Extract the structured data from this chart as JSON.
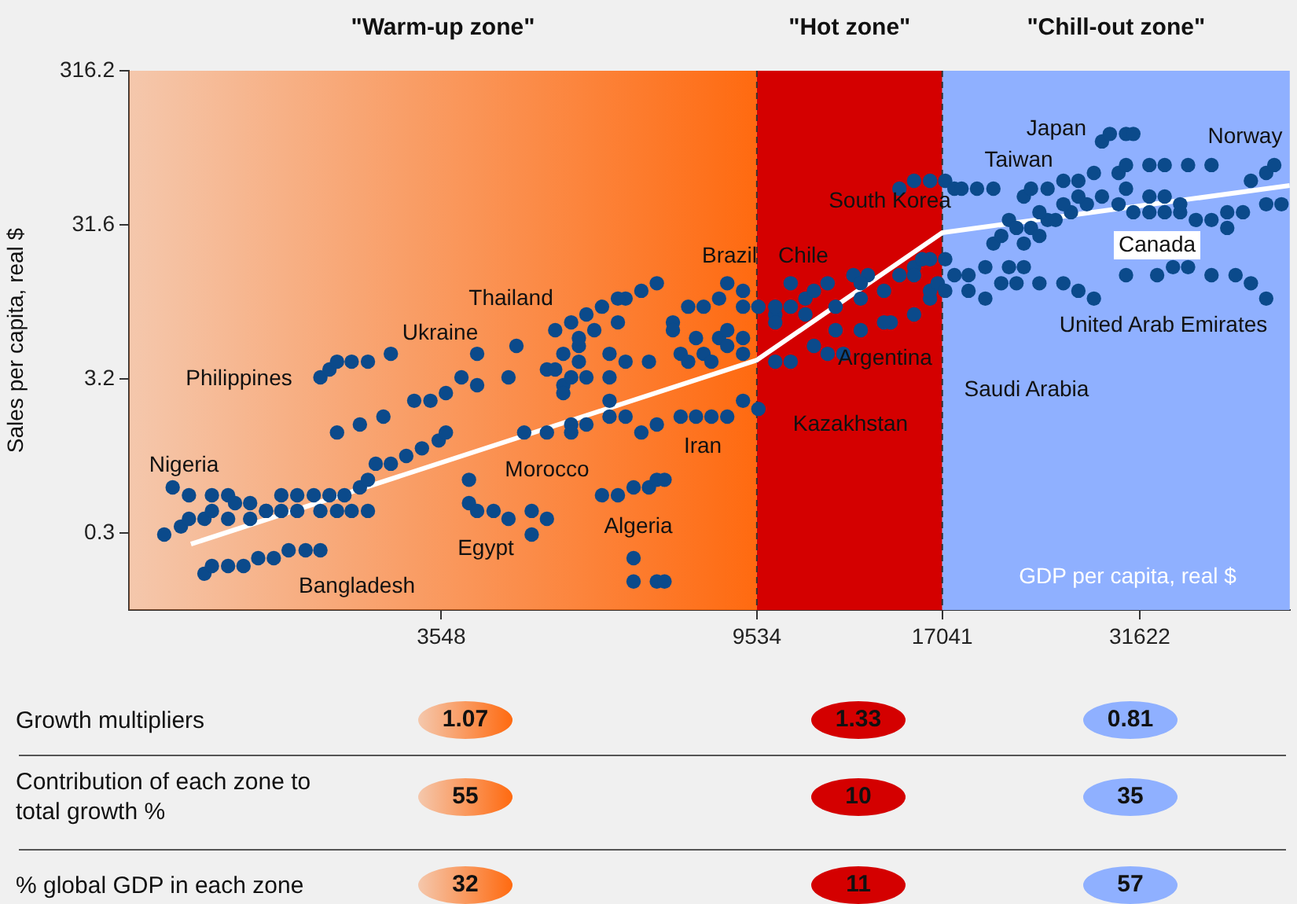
{
  "chart_data": [
    {
      "type": "scatter",
      "ylabel": "Sales per capita, real $",
      "xlabel": "GDP per capita, real $",
      "log": "xy",
      "legend": false,
      "xlim": [
        1334,
        50600
      ],
      "ylim": [
        0.1,
        316.2
      ],
      "xticks": [
        3548,
        9534,
        17041,
        31622
      ],
      "yticks": [
        {
          "value": 0.3162,
          "label": "0.3"
        },
        {
          "value": 3.162,
          "label": "3.2"
        },
        {
          "value": 31.62,
          "label": "31.6"
        },
        {
          "value": 316.2,
          "label": "316.2"
        }
      ],
      "bands": [
        {
          "axis": "x",
          "from": 1334,
          "to": 9534,
          "label": "\"Warm-up zone\"",
          "color": "#ff6a10"
        },
        {
          "axis": "x",
          "from": 9534,
          "to": 17041,
          "label": "\"Hot zone\"",
          "color": "#d40000"
        },
        {
          "axis": "x",
          "from": 17041,
          "to": 50600,
          "label": "\"Chill-out zone\"",
          "color": "#8fb0ff"
        }
      ],
      "ref_lines": [
        {
          "axis": "x",
          "value": 9534,
          "color": "#333333",
          "line_style": "dashed"
        },
        {
          "axis": "x",
          "value": 17041,
          "color": "#333333",
          "line_style": "dashed"
        }
      ],
      "series": [
        {
          "type": "scatter",
          "color": "#0b4a8b",
          "x": [
            1490,
            1570,
            1610,
            1690,
            1530,
            1610,
            1730,
            1820,
            1860,
            1950,
            2050,
            2150,
            2260,
            2380,
            2500,
            2620,
            2750,
            2820,
            2890,
            3030,
            3180,
            3340,
            3520,
            3600,
            1730,
            1820,
            1950,
            2050,
            2150,
            2260,
            2430,
            2560,
            2680,
            2820,
            1690,
            1730,
            1820,
            1910,
            2000,
            2100,
            2200,
            2320,
            2430,
            2430,
            2500,
            2560,
            2680,
            2820,
            3030,
            2560,
            2750,
            2960,
            3260,
            3430,
            3600,
            3780,
            3970,
            3970,
            4380,
            4490,
            3870,
            3970,
            4180,
            4380,
            4710,
            4940,
            4710,
            3870,
            5070,
            5330,
            5590,
            5200,
            5460,
            4940,
            5200,
            5200,
            5330,
            5590,
            5460,
            4600,
            4940,
            5330,
            6970,
            6640,
            6320,
            6170,
            5870,
            5730,
            5460,
            6170,
            7330,
            7690,
            8070,
            8470,
            8690,
            9130,
            9130,
            9580,
            7330,
            7880,
            8470,
            8690,
            9130,
            5070,
            6010,
            6320,
            6800,
            7510,
            7690,
            8070,
            8270,
            8690,
            9130,
            6010,
            6010,
            5330,
            5590,
            6010,
            6320,
            6640,
            6970,
            7510,
            7880,
            8270,
            8690,
            9130,
            9580,
            5870,
            6170,
            6480,
            6800,
            6970,
            7140,
            6480,
            6480,
            6970,
            7140,
            10100,
            10600,
            11100,
            11900,
            12900,
            13500,
            14200,
            14900,
            15600,
            16400,
            17200,
            16400,
            15600,
            14500,
            13200,
            12200,
            11400,
            11900,
            12500,
            10600,
            10100,
            10100,
            11100,
            12200,
            13200,
            10600,
            14900,
            15600,
            16400,
            16000,
            15600,
            13200,
            11400,
            10100,
            14200,
            16400,
            16800,
            17700,
            17200,
            17700,
            18100,
            19000,
            20000,
            21000,
            22000,
            22500,
            23700,
            24900,
            26100,
            27400,
            29600,
            30300,
            32600,
            34200,
            36800,
            39600,
            28100,
            28800,
            30300,
            31000,
            44800,
            47000,
            48200,
            49300,
            47000,
            43700,
            41600,
            20000,
            20500,
            21500,
            22500,
            23700,
            24300,
            25500,
            26800,
            28100,
            29600,
            31000,
            32600,
            34200,
            35900,
            37700,
            39600,
            41600,
            30300,
            32600,
            34200,
            35900,
            23100,
            24900,
            26100,
            23100,
            22000,
            17200,
            18500,
            19500,
            21000,
            22000,
            23100,
            24900,
            26100,
            27400,
            18500,
            19500,
            20500,
            21500,
            30300,
            33400,
            35100,
            36800,
            39600,
            42700,
            44800,
            47000
          ],
          "values": [
            0.309,
            0.348,
            0.391,
            0.391,
            0.625,
            0.556,
            0.556,
            0.556,
            0.494,
            0.494,
            0.44,
            0.556,
            0.556,
            0.556,
            0.556,
            0.556,
            0.625,
            0.7,
            0.89,
            0.89,
            1.0,
            1.12,
            1.26,
            1.42,
            0.44,
            0.391,
            0.391,
            0.44,
            0.44,
            0.44,
            0.44,
            0.44,
            0.44,
            0.44,
            0.172,
            0.193,
            0.193,
            0.193,
            0.217,
            0.217,
            0.244,
            0.244,
            0.244,
            3.24,
            3.64,
            4.09,
            4.09,
            4.09,
            4.6,
            1.42,
            1.6,
            1.8,
            2.28,
            2.28,
            2.56,
            3.24,
            2.88,
            4.6,
            3.24,
            5.18,
            0.494,
            0.44,
            0.44,
            0.391,
            0.44,
            0.391,
            0.309,
            0.7,
            6.55,
            7.36,
            8.28,
            4.6,
            5.18,
            3.64,
            2.88,
            2.56,
            3.24,
            3.24,
            4.09,
            1.42,
            1.42,
            1.6,
            13.2,
            11.8,
            10.5,
            10.5,
            9.3,
            6.55,
            5.82,
            7.36,
            7.36,
            9.3,
            9.3,
            10.5,
            13.2,
            11.8,
            9.3,
            9.3,
            6.55,
            5.82,
            5.82,
            6.55,
            5.82,
            3.64,
            3.24,
            4.09,
            4.09,
            4.6,
            4.09,
            4.6,
            4.09,
            5.18,
            4.6,
            4.6,
            2.28,
            1.42,
            1.6,
            1.8,
            1.8,
            1.42,
            1.6,
            1.8,
            1.8,
            1.8,
            1.8,
            2.28,
            2.02,
            0.556,
            0.556,
            0.625,
            0.625,
            0.7,
            0.7,
            0.217,
            0.153,
            0.153,
            0.153,
            8.28,
            9.3,
            10.5,
            13.2,
            14.9,
            14.9,
            11.8,
            14.9,
            16.8,
            18.9,
            18.9,
            10.5,
            8.28,
            7.36,
            6.55,
            6.55,
            5.18,
            4.6,
            4.6,
            4.09,
            4.09,
            7.36,
            8.28,
            9.3,
            10.5,
            13.2,
            54.3,
            61.1,
            61.1,
            18.9,
            14.9,
            13.2,
            11.8,
            9.3,
            7.36,
            11.8,
            13.2,
            14.9,
            61.1,
            54.3,
            54.3,
            54.3,
            54.3,
            34.0,
            48.3,
            54.3,
            54.3,
            61.1,
            61.1,
            68.7,
            68.7,
            77.3,
            77.3,
            77.3,
            77.3,
            77.3,
            110,
            123,
            123,
            123,
            61.1,
            68.7,
            77.3,
            43.0,
            43.0,
            38.2,
            38.2,
            23.9,
            26.8,
            30.2,
            30.2,
            34.0,
            34.0,
            38.2,
            43.0,
            48.3,
            43.0,
            38.2,
            38.2,
            38.2,
            38.2,
            34.0,
            34.0,
            30.2,
            54.3,
            48.3,
            48.3,
            43.0,
            38.2,
            43.0,
            48.3,
            26.8,
            23.9,
            11.8,
            14.9,
            16.8,
            16.8,
            16.8,
            13.2,
            13.2,
            11.8,
            10.5,
            11.8,
            10.5,
            13.2,
            13.2,
            14.9,
            14.9,
            16.8,
            16.8,
            14.9,
            14.9,
            13.2,
            10.5
          ]
        },
        {
          "type": "line",
          "color": "#ffffff",
          "x": [
            1620,
            9534,
            17041,
            50600
          ],
          "values": [
            0.268,
            4.19,
            28.1,
            56.9
          ]
        }
      ],
      "annotations": [
        "Nigeria",
        "Philippines",
        "Ukraine",
        "Thailand",
        "Brazil",
        "Chile",
        "South Korea",
        "Japan",
        "Taiwan",
        "Norway",
        "Canada",
        "United Arab Emirates",
        "Saudi Arabia",
        "Argentina",
        "Kazakhstan",
        "Iran",
        "Morocco",
        "Algeria",
        "Egypt",
        "Bangladesh"
      ]
    },
    {
      "type": "other",
      "data_labels": true,
      "categories": [
        "Growth multipliers",
        "Contribution of each zone to total growth %",
        "% global GDP in each zone"
      ],
      "series": [
        {
          "color": "#ff6a10",
          "values": [
            1.07,
            55,
            32
          ]
        },
        {
          "color": "#d40000",
          "values": [
            1.33,
            10,
            11
          ]
        },
        {
          "color": "#8fb0ff",
          "values": [
            0.81,
            35,
            57
          ]
        }
      ]
    }
  ]
}
